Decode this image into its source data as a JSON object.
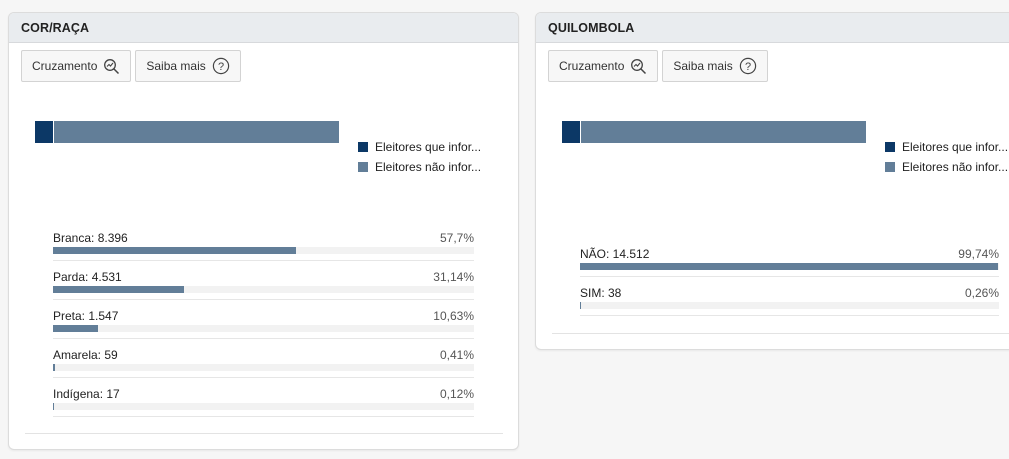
{
  "colors": {
    "dark_blue": "#0c3866",
    "slate_blue": "#627e98"
  },
  "cor_raca": {
    "title": "COR/RAÇA",
    "buttons": {
      "cruzamento": "Cruzamento",
      "saiba_mais": "Saiba mais"
    },
    "legend": [
      "Eleitores que infor...",
      "Eleitores não infor..."
    ],
    "stack_fractions": [
      0.06,
      0.94
    ],
    "rows": [
      {
        "label": "Branca: 8.396",
        "pct": "57,7%",
        "fraction": 0.577
      },
      {
        "label": "Parda: 4.531",
        "pct": "31,14%",
        "fraction": 0.3114
      },
      {
        "label": "Preta: 1.547",
        "pct": "10,63%",
        "fraction": 0.1063
      },
      {
        "label": "Amarela: 59",
        "pct": "0,41%",
        "fraction": 0.0041
      },
      {
        "label": "Indígena: 17",
        "pct": "0,12%",
        "fraction": 0.0012
      }
    ]
  },
  "quilombola": {
    "title": "QUILOMBOLA",
    "buttons": {
      "cruzamento": "Cruzamento",
      "saiba_mais": "Saiba mais"
    },
    "legend": [
      "Eleitores que infor...",
      "Eleitores não infor..."
    ],
    "stack_fractions": [
      0.06,
      0.94
    ],
    "rows": [
      {
        "label": "NÃO: 14.512",
        "pct": "99,74%",
        "fraction": 0.9974
      },
      {
        "label": "SIM: 38",
        "pct": "0,26%",
        "fraction": 0.0026
      }
    ]
  }
}
